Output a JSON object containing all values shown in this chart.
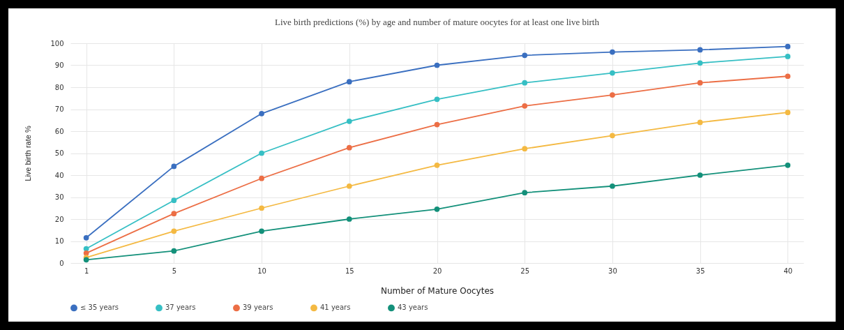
{
  "chart_data": {
    "type": "line",
    "title": "Live birth predictions (%) by age and number of mature oocytes for at least one live birth",
    "xlabel": "Number of Mature Oocytes",
    "ylabel": "Live birth rate %",
    "categories": [
      "1",
      "5",
      "10",
      "15",
      "20",
      "25",
      "30",
      "35",
      "40"
    ],
    "series": [
      {
        "name": "≤ 35 years",
        "color": "#3a6fc0",
        "values": [
          11.5,
          44,
          68,
          82.5,
          90,
          94.5,
          96,
          97,
          98.5
        ]
      },
      {
        "name": "37 years",
        "color": "#36bfc4",
        "values": [
          6.5,
          28.5,
          50,
          64.5,
          74.5,
          82,
          86.5,
          91,
          94
        ]
      },
      {
        "name": "39 years",
        "color": "#ec6e45",
        "values": [
          4.5,
          22.5,
          38.5,
          52.5,
          63,
          71.5,
          76.5,
          82,
          85
        ]
      },
      {
        "name": "41 years",
        "color": "#f4b942",
        "values": [
          2.5,
          14.5,
          25,
          35,
          44.5,
          52,
          58,
          64,
          68.5
        ]
      },
      {
        "name": "43 years",
        "color": "#13907a",
        "values": [
          1.5,
          5.5,
          14.5,
          20,
          24.5,
          32,
          35,
          40,
          44.5
        ]
      }
    ],
    "ylim": [
      0,
      100
    ],
    "yticks": [
      0,
      10,
      20,
      30,
      40,
      50,
      60,
      70,
      80,
      90,
      100
    ],
    "grid": true,
    "legend": "bottom",
    "marker": "circle",
    "line_style": "solid"
  }
}
